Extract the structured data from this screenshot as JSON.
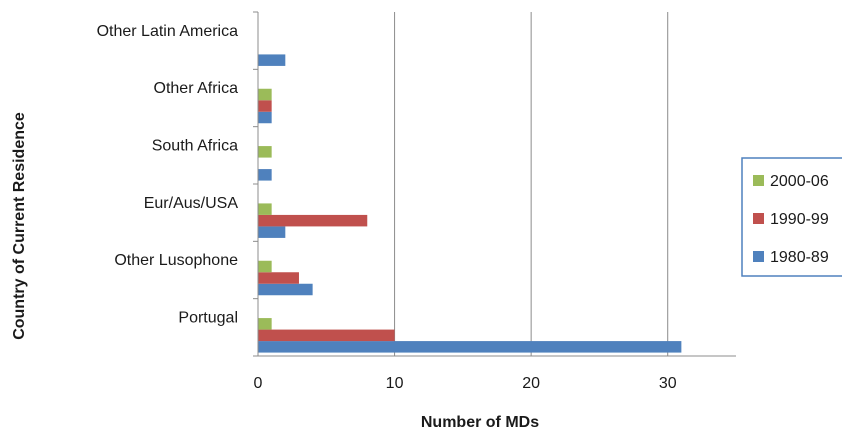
{
  "chart_data": {
    "type": "bar",
    "orientation": "horizontal",
    "categories": [
      "Portugal",
      "Other Lusophone",
      "Eur/Aus/USA",
      "South Africa",
      "Other Africa",
      "Other Latin America"
    ],
    "series": [
      {
        "name": "1980-89",
        "color": "#4f81bd",
        "values": [
          31,
          4,
          2,
          1,
          1,
          2
        ]
      },
      {
        "name": "1990-99",
        "color": "#c0504d",
        "values": [
          10,
          3,
          8,
          0,
          1,
          0
        ]
      },
      {
        "name": "2000-06",
        "color": "#9bbb59",
        "values": [
          1,
          1,
          1,
          1,
          1,
          0
        ]
      }
    ],
    "xlabel": "Number of MDs",
    "ylabel": "Country of Current Residence",
    "xlim": [
      0,
      35
    ],
    "xticks": [
      0,
      10,
      20,
      30
    ],
    "tick_labels": [
      "0",
      "10",
      "20",
      "30"
    ],
    "grid": "vertical major gridlines",
    "legend_position": "right",
    "legend_order": [
      "2000-06",
      "1990-99",
      "1980-89"
    ]
  }
}
